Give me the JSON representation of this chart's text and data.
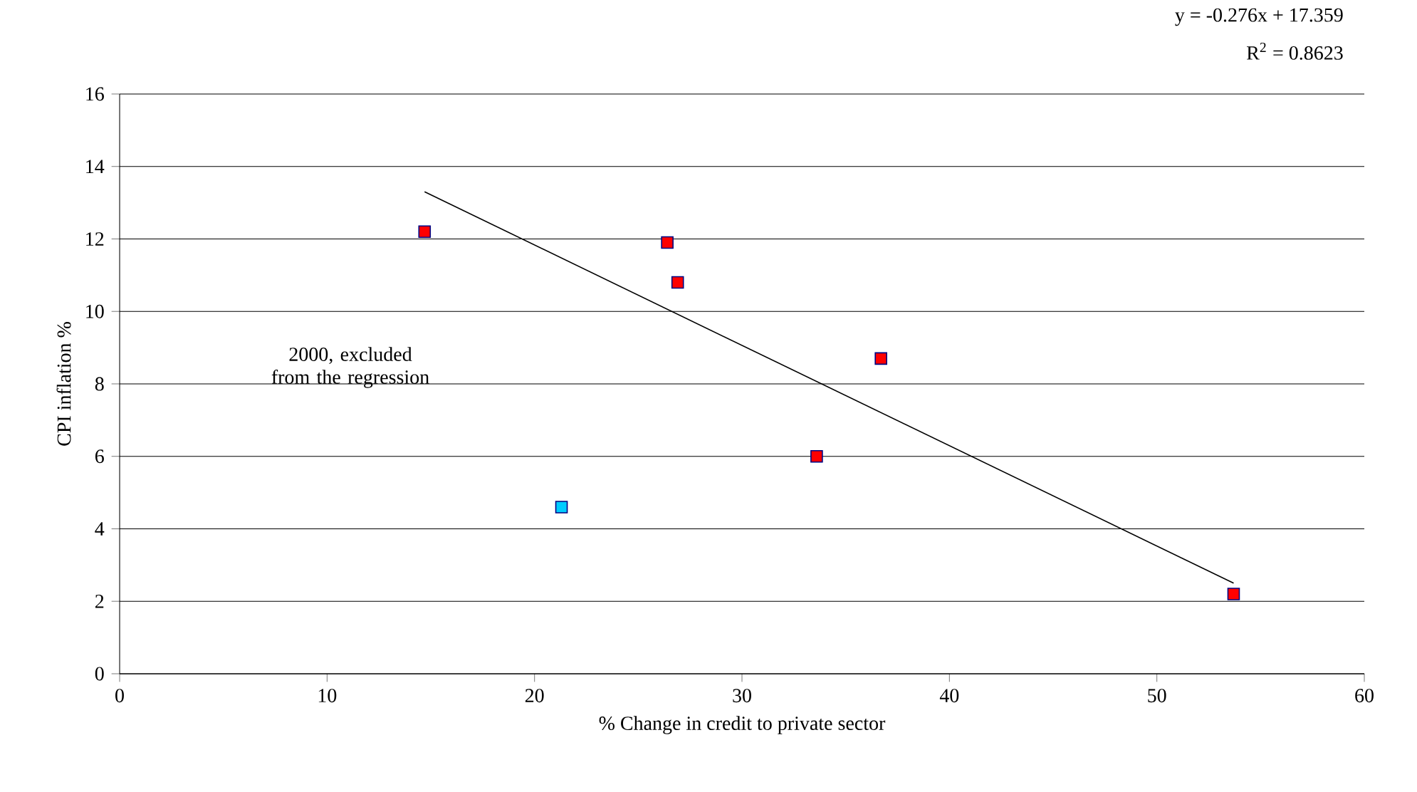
{
  "chart_data": {
    "type": "scatter",
    "xlabel": "% Change in credit to private sector",
    "ylabel": "CPI inflation %",
    "xlim": [
      0,
      60
    ],
    "ylim": [
      0,
      16
    ],
    "xticks": [
      0,
      10,
      20,
      30,
      40,
      50,
      60
    ],
    "yticks": [
      0,
      2,
      4,
      6,
      8,
      10,
      12,
      14,
      16
    ],
    "grid": "y",
    "series": [
      {
        "color": "#ff0000",
        "marker": "square",
        "x": [
          14.7,
          26.4,
          26.9,
          36.7,
          33.6,
          53.7
        ],
        "values": [
          12.2,
          11.9,
          10.8,
          8.7,
          6.0,
          2.2
        ]
      },
      {
        "color": "#00ccff",
        "marker": "square",
        "x": [
          21.3
        ],
        "values": [
          4.6
        ]
      },
      {
        "type": "line",
        "marker": "none",
        "color": "#000000",
        "x": [
          14.7,
          53.7
        ],
        "values": [
          13.3,
          2.5
        ]
      }
    ],
    "annotations": [
      "y = -0.276x + 17.359",
      "R$^{2}$ = 0.8623",
      "2000, excluded from the regression"
    ]
  }
}
